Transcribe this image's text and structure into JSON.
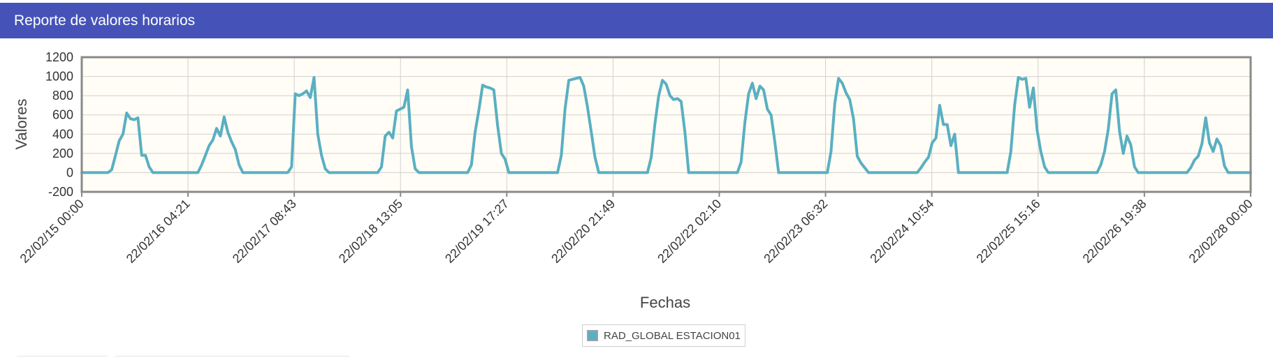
{
  "header": {
    "title": "Reporte de valores horarios"
  },
  "colors": {
    "header_bg": "#4553b8",
    "series": "#5aafc2",
    "plot_bg": "#fffdf5",
    "grid": "#d0d0d0",
    "frame": "#8a8a8a"
  },
  "chart_data": {
    "type": "line",
    "title": "",
    "xlabel": "Fechas",
    "ylabel": "Valores",
    "ylim": [
      -200,
      1200
    ],
    "yticks": [
      -200,
      0,
      200,
      400,
      600,
      800,
      1000,
      1200
    ],
    "xlim": [
      "22/02/15 00:00",
      "22/02/28 00:00"
    ],
    "x_tick_labels": [
      "22/02/15 00:00",
      "22/02/16 04:21",
      "22/02/17 08:43",
      "22/02/18 13:05",
      "22/02/19 17:27",
      "22/02/20 21:49",
      "22/02/22 02:10",
      "22/02/23 06:32",
      "22/02/24 10:54",
      "22/02/25 15:16",
      "22/02/26 19:38",
      "22/02/28 00:00"
    ],
    "grid": true,
    "legend_position": "bottom-center",
    "series": [
      {
        "name": "RAD_GLOBAL ESTACION01",
        "x": [
          "22/02/15 00:00",
          "22/02/15 07:00",
          "22/02/15 08:00",
          "22/02/15 09:00",
          "22/02/15 10:00",
          "22/02/15 11:00",
          "22/02/15 12:00",
          "22/02/15 13:00",
          "22/02/15 14:00",
          "22/02/15 15:00",
          "22/02/15 16:00",
          "22/02/15 17:00",
          "22/02/15 18:00",
          "22/02/15 19:00",
          "22/02/16 07:00",
          "22/02/16 08:00",
          "22/02/16 09:00",
          "22/02/16 10:00",
          "22/02/16 11:00",
          "22/02/16 12:00",
          "22/02/16 13:00",
          "22/02/16 14:00",
          "22/02/16 15:00",
          "22/02/16 16:00",
          "22/02/16 17:00",
          "22/02/16 18:00",
          "22/02/16 19:00",
          "22/02/17 07:00",
          "22/02/17 08:00",
          "22/02/17 09:00",
          "22/02/17 10:00",
          "22/02/17 11:00",
          "22/02/17 12:00",
          "22/02/17 13:00",
          "22/02/17 14:00",
          "22/02/17 15:00",
          "22/02/17 16:00",
          "22/02/17 17:00",
          "22/02/17 18:00",
          "22/02/18 07:00",
          "22/02/18 08:00",
          "22/02/18 09:00",
          "22/02/18 10:00",
          "22/02/18 11:00",
          "22/02/18 12:00",
          "22/02/18 13:00",
          "22/02/18 14:00",
          "22/02/18 15:00",
          "22/02/18 16:00",
          "22/02/18 17:00",
          "22/02/18 18:00",
          "22/02/19 07:00",
          "22/02/19 08:00",
          "22/02/19 09:00",
          "22/02/19 10:00",
          "22/02/19 11:00",
          "22/02/19 12:00",
          "22/02/19 13:00",
          "22/02/19 14:00",
          "22/02/19 15:00",
          "22/02/19 16:00",
          "22/02/19 17:00",
          "22/02/19 18:00",
          "22/02/20 07:00",
          "22/02/20 08:00",
          "22/02/20 09:00",
          "22/02/20 10:00",
          "22/02/20 11:00",
          "22/02/20 12:00",
          "22/02/20 13:00",
          "22/02/20 14:00",
          "22/02/20 15:00",
          "22/02/20 16:00",
          "22/02/20 17:00",
          "22/02/20 18:00",
          "22/02/21 07:00",
          "22/02/21 08:00",
          "22/02/21 09:00",
          "22/02/21 10:00",
          "22/02/21 11:00",
          "22/02/21 12:00",
          "22/02/21 13:00",
          "22/02/21 14:00",
          "22/02/21 15:00",
          "22/02/21 16:00",
          "22/02/21 17:00",
          "22/02/21 18:00",
          "22/02/22 07:00",
          "22/02/22 08:00",
          "22/02/22 09:00",
          "22/02/22 10:00",
          "22/02/22 11:00",
          "22/02/22 12:00",
          "22/02/22 13:00",
          "22/02/22 14:00",
          "22/02/22 15:00",
          "22/02/22 16:00",
          "22/02/22 17:00",
          "22/02/22 18:00",
          "22/02/23 07:00",
          "22/02/23 08:00",
          "22/02/23 09:00",
          "22/02/23 10:00",
          "22/02/23 11:00",
          "22/02/23 12:00",
          "22/02/23 13:00",
          "22/02/23 14:00",
          "22/02/23 15:00",
          "22/02/23 16:00",
          "22/02/23 17:00",
          "22/02/23 18:00",
          "22/02/24 07:00",
          "22/02/24 08:00",
          "22/02/24 09:00",
          "22/02/24 10:00",
          "22/02/24 11:00",
          "22/02/24 12:00",
          "22/02/24 13:00",
          "22/02/24 14:00",
          "22/02/24 15:00",
          "22/02/24 16:00",
          "22/02/24 17:00",
          "22/02/24 18:00",
          "22/02/25 07:00",
          "22/02/25 08:00",
          "22/02/25 09:00",
          "22/02/25 10:00",
          "22/02/25 11:00",
          "22/02/25 12:00",
          "22/02/25 13:00",
          "22/02/25 14:00",
          "22/02/25 15:00",
          "22/02/25 16:00",
          "22/02/25 17:00",
          "22/02/25 18:00",
          "22/02/26 07:00",
          "22/02/26 08:00",
          "22/02/26 09:00",
          "22/02/26 10:00",
          "22/02/26 11:00",
          "22/02/26 12:00",
          "22/02/26 13:00",
          "22/02/26 14:00",
          "22/02/26 15:00",
          "22/02/26 16:00",
          "22/02/26 17:00",
          "22/02/26 18:00",
          "22/02/27 07:00",
          "22/02/27 08:00",
          "22/02/27 09:00",
          "22/02/27 10:00",
          "22/02/27 11:00",
          "22/02/27 12:00",
          "22/02/27 13:00",
          "22/02/27 14:00",
          "22/02/27 15:00",
          "22/02/27 16:00",
          "22/02/27 17:00",
          "22/02/27 18:00",
          "22/02/28 00:00"
        ],
        "y": [
          0,
          0,
          30,
          180,
          330,
          400,
          620,
          560,
          550,
          570,
          180,
          180,
          60,
          0,
          0,
          80,
          180,
          280,
          340,
          460,
          380,
          580,
          420,
          320,
          240,
          80,
          0,
          0,
          60,
          820,
          800,
          820,
          850,
          780,
          990,
          400,
          180,
          40,
          0,
          0,
          60,
          380,
          420,
          360,
          640,
          660,
          680,
          860,
          270,
          40,
          0,
          0,
          80,
          420,
          650,
          910,
          890,
          880,
          860,
          490,
          200,
          140,
          0,
          0,
          180,
          660,
          960,
          970,
          980,
          990,
          900,
          680,
          420,
          160,
          0,
          0,
          160,
          510,
          800,
          960,
          920,
          800,
          760,
          770,
          740,
          420,
          0,
          0,
          110,
          520,
          820,
          930,
          770,
          900,
          860,
          660,
          600,
          320,
          0,
          0,
          220,
          720,
          980,
          930,
          830,
          760,
          560,
          170,
          100,
          50,
          0,
          0,
          50,
          110,
          160,
          310,
          360,
          700,
          500,
          500,
          280,
          400,
          0,
          0,
          220,
          700,
          990,
          970,
          980,
          680,
          880,
          440,
          220,
          60,
          0,
          0,
          80,
          220,
          450,
          820,
          860,
          430,
          200,
          380,
          290,
          60,
          0,
          0,
          50,
          130,
          170,
          300,
          570,
          310,
          220,
          350,
          280,
          70,
          0,
          0
        ]
      }
    ]
  }
}
